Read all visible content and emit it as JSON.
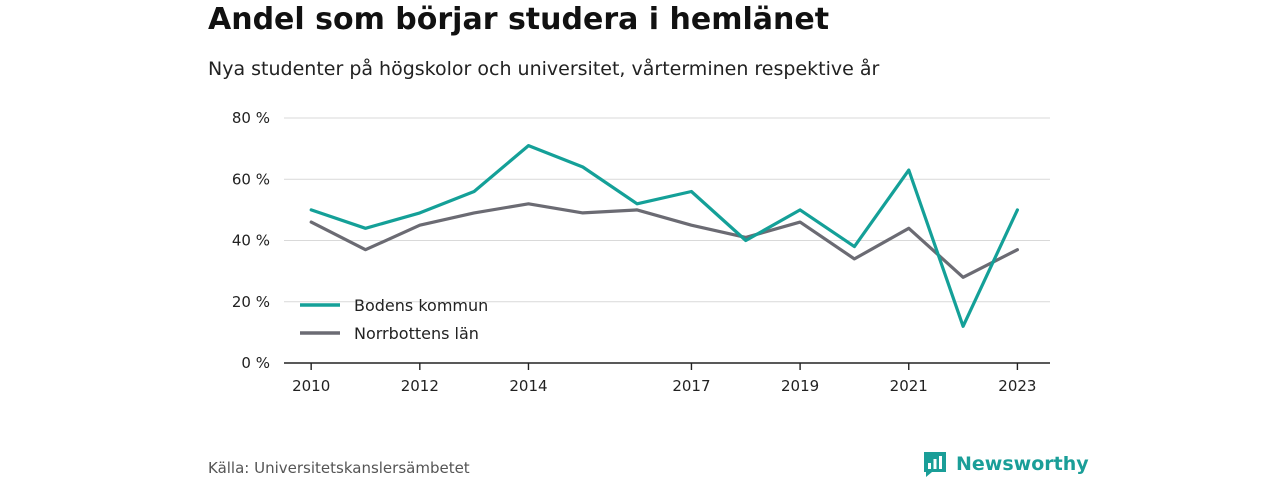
{
  "header": {
    "title": "Andel som börjar studera i hemlänet",
    "subtitle": "Nya studenter på högskolor och universitet, vårterminen respektive år"
  },
  "footer": {
    "source": "Källa: Universitetskanslersämbetet",
    "brand": "Newsworthy",
    "brand_icon": "bar-chart-logo-icon"
  },
  "chart_data": {
    "type": "line",
    "x": [
      2010,
      2011,
      2012,
      2013,
      2014,
      2015,
      2016,
      2017,
      2018,
      2019,
      2020,
      2021,
      2022,
      2023
    ],
    "x_ticks": [
      2010,
      2012,
      2014,
      2017,
      2019,
      2021,
      2023
    ],
    "y_ticks": [
      0,
      20,
      40,
      60,
      80
    ],
    "y_tick_suffix": " %",
    "ylim": [
      0,
      80
    ],
    "xlim": [
      2009.5,
      2023.6
    ],
    "grid": true,
    "legend_position": "bottom-left",
    "series": [
      {
        "name": "Bodens kommun",
        "color": "#14a098",
        "values": [
          50,
          44,
          49,
          56,
          71,
          64,
          52,
          56,
          40,
          50,
          38,
          63,
          12,
          50
        ]
      },
      {
        "name": "Norrbottens län",
        "color": "#6b6b73",
        "values": [
          46,
          37,
          45,
          49,
          52,
          49,
          50,
          45,
          41,
          46,
          34,
          44,
          28,
          37
        ]
      }
    ]
  }
}
